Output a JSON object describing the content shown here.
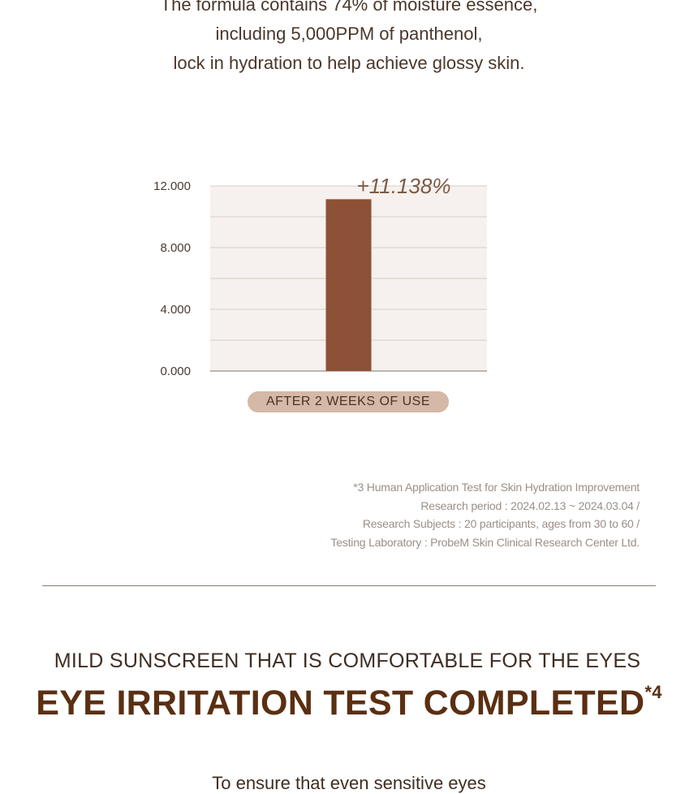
{
  "intro": {
    "lines": [
      "The formula contains 74% of moisture essence,",
      "including 5,000PPM of panthenol,",
      "lock in hydration to help achieve glossy skin."
    ]
  },
  "chart_data": {
    "type": "bar",
    "categories": [
      "AFTER 2 WEEKS OF USE"
    ],
    "values": [
      11.138
    ],
    "data_label": "+11.138%",
    "yticks": [
      "0.000",
      "4.000",
      "8.000",
      "12.000"
    ],
    "ylim": [
      0,
      12
    ],
    "title": "",
    "xlabel": "",
    "ylabel": "",
    "grid": true,
    "colors": {
      "bar": "#8d5137",
      "plot_background": "#f6f1ee",
      "grid": "#d6cdc6",
      "label_pill": "#d5b8a6"
    }
  },
  "footnote": {
    "lines": [
      "*3 Human Application Test for Skin Hydration Improvement",
      "Research period : 2024.02.13 ~ 2024.03.04 /",
      "Research Subjects : 20 participants, ages from 30 to 60 /",
      "Testing Laboratory : ProbeM Skin Clinical Research Center Ltd."
    ]
  },
  "section": {
    "subheading": "MILD SUNSCREEN THAT IS COMFORTABLE FOR THE EYES",
    "headline": "EYE IRRITATION TEST COMPLETED",
    "headline_sup": "*4",
    "tail": "To ensure that even sensitive eyes"
  }
}
